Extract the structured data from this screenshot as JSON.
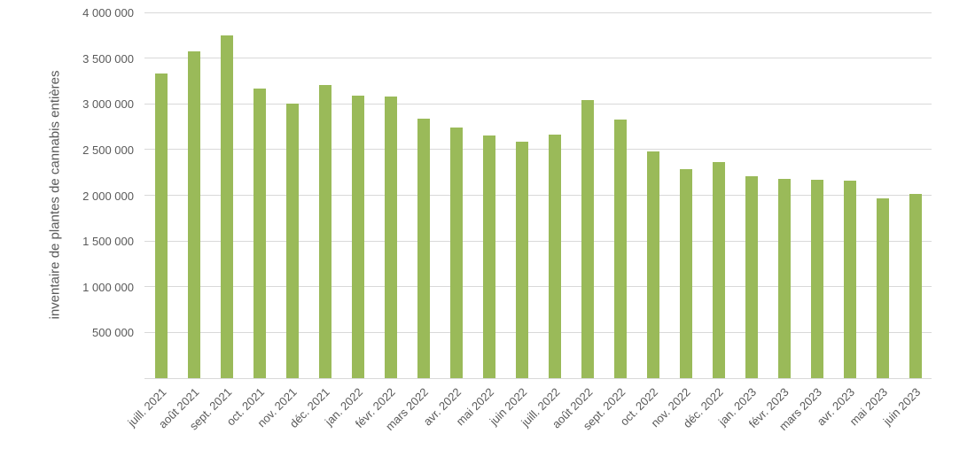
{
  "chart_data": {
    "type": "bar",
    "title": "",
    "xlabel": "",
    "ylabel": "inventaire de plantes de cannabis entières",
    "categories": [
      "juill. 2021",
      "août 2021",
      "sept. 2021",
      "oct. 2021",
      "nov. 2021",
      "déc. 2021",
      "jan. 2022",
      "févr. 2022",
      "mars 2022",
      "avr. 2022",
      "mai 2022",
      "juin 2022",
      "juill. 2022",
      "août 2022",
      "sept. 2022",
      "oct. 2022",
      "nov. 2022",
      "déc. 2022",
      "jan. 2023",
      "févr. 2023",
      "mars 2023",
      "avr. 2023",
      "mai 2023",
      "juin 2023"
    ],
    "values": [
      3330000,
      3570000,
      3750000,
      3170000,
      3000000,
      3210000,
      3090000,
      3080000,
      2840000,
      2740000,
      2650000,
      2590000,
      2660000,
      3040000,
      2830000,
      2480000,
      2290000,
      2360000,
      2210000,
      2180000,
      2170000,
      2160000,
      1970000,
      2010000
    ],
    "ylim": [
      0,
      4000000
    ],
    "ytick_values": [
      0,
      500000,
      1000000,
      1500000,
      2000000,
      2500000,
      3000000,
      3500000,
      4000000
    ],
    "ytick_labels": [
      "",
      "500 000",
      "1 000 000",
      "1 500 000",
      "2 000 000",
      "2 500 000",
      "3 000 000",
      "3 500 000",
      "4 000 000"
    ],
    "grid": "horizontal",
    "legend": "none",
    "colors": {
      "bar": "#9aba59",
      "grid": "#d9d9d9",
      "text": "#595959"
    }
  }
}
